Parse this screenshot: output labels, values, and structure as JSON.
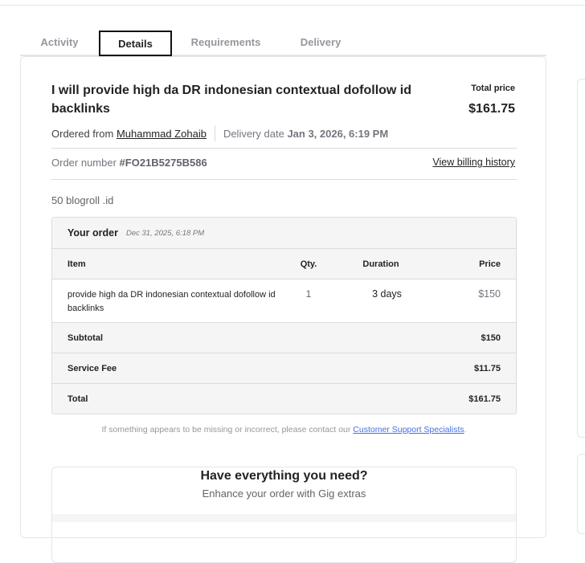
{
  "tabs": [
    {
      "label": "Activity"
    },
    {
      "label": "Details",
      "active": true
    },
    {
      "label": "Requirements"
    },
    {
      "label": "Delivery"
    }
  ],
  "order": {
    "title": "I will provide high da DR indonesian contextual dofollow id backlinks",
    "total_price_label": "Total price",
    "total_price": "$161.75",
    "ordered_from_label": "Ordered from",
    "seller": "Muhammad Zohaib",
    "delivery_label": "Delivery date",
    "delivery_date": "Jan 3, 2026, 6:19 PM",
    "order_number_label": "Order number",
    "order_number": "#FO21B5275B586",
    "billing_link": "View billing history",
    "package": "50 blogroll .id"
  },
  "table": {
    "title": "Your order",
    "date": "Dec 31, 2025, 6:18 PM",
    "headers": [
      "Item",
      "Qty.",
      "Duration",
      "Price"
    ],
    "item": {
      "name": "provide high da DR indonesian contextual dofollow id backlinks",
      "qty": "1",
      "duration": "3 days",
      "price": "$150"
    },
    "subtotal": {
      "label": "Subtotal",
      "value": "$150"
    },
    "fee": {
      "label": "Service Fee",
      "value": "$11.75"
    },
    "total": {
      "label": "Total",
      "value": "$161.75"
    }
  },
  "note": {
    "text": "If something appears to be missing or incorrect, please contact our ",
    "link": "Customer Support Specialists",
    "end": "."
  },
  "extras": {
    "title": "Have everything you need?",
    "subtitle": "Enhance your order with Gig extras"
  },
  "colors": {
    "link": "#446ee7",
    "border": "#dadbdd"
  }
}
